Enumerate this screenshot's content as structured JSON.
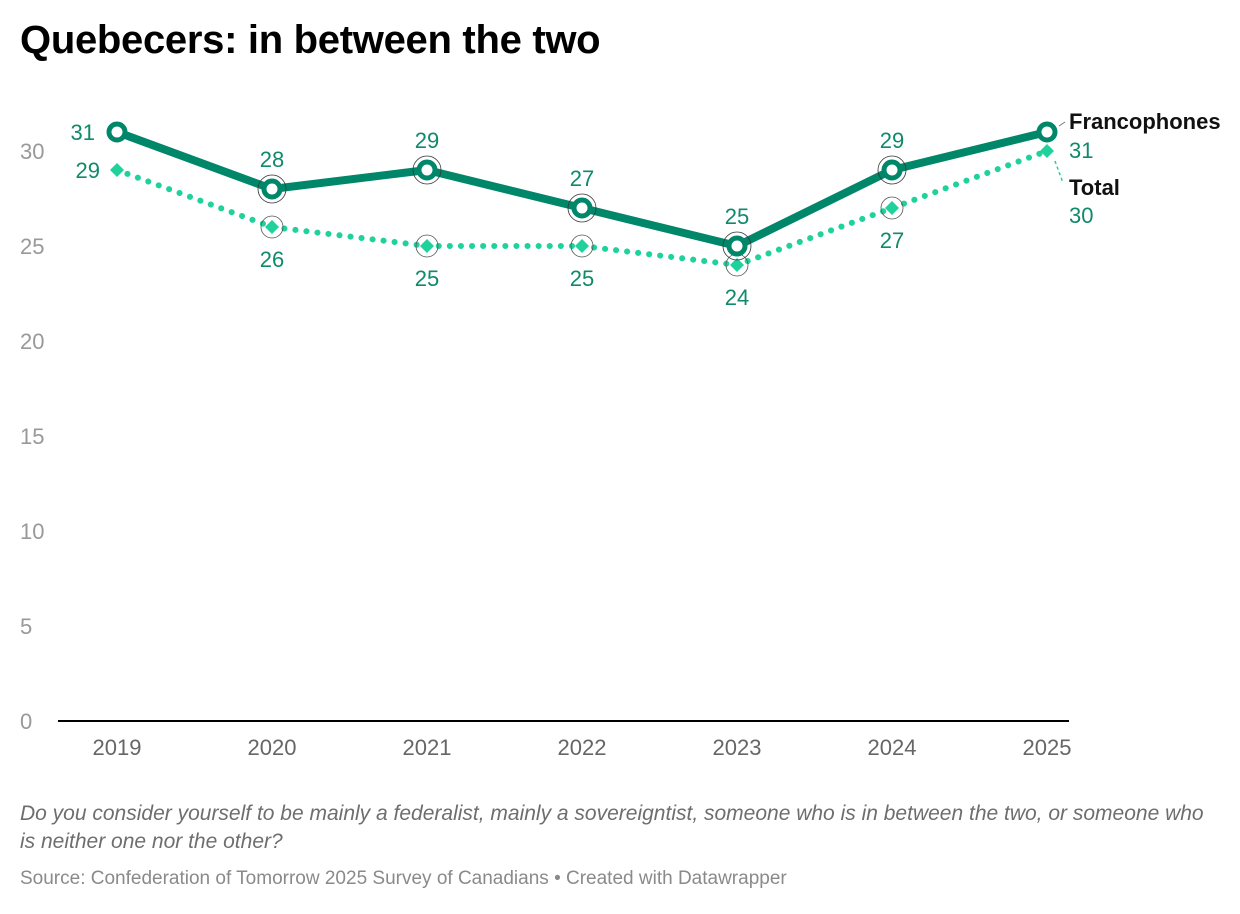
{
  "title": "Quebecers: in between the two",
  "notes": "Do you consider yourself to be mainly a federalist, mainly a sovereigntist, someone who is in between the two, or someone who is neither one nor the other?",
  "source": "Source: Confederation of Tomorrow 2025 Survey of Canadians • Created with Datawrapper",
  "chart_data": {
    "type": "line",
    "title": "Quebecers: in between the two",
    "xlabel": "",
    "ylabel": "",
    "x": [
      "2019",
      "2020",
      "2021",
      "2022",
      "2023",
      "2024",
      "2025"
    ],
    "ylim": [
      0,
      33
    ],
    "yticks": [
      0,
      5,
      10,
      15,
      20,
      25,
      30
    ],
    "grid": false,
    "series": [
      {
        "name": "Francophones",
        "values": [
          31,
          28,
          29,
          27,
          25,
          29,
          31
        ],
        "color": "#00876a",
        "style": "solid",
        "marker": "circle"
      },
      {
        "name": "Total",
        "values": [
          29,
          26,
          25,
          25,
          24,
          27,
          30
        ],
        "color": "#1fd29b",
        "style": "dotted",
        "marker": "diamond"
      }
    ],
    "label_color": "#0f8a6a"
  }
}
